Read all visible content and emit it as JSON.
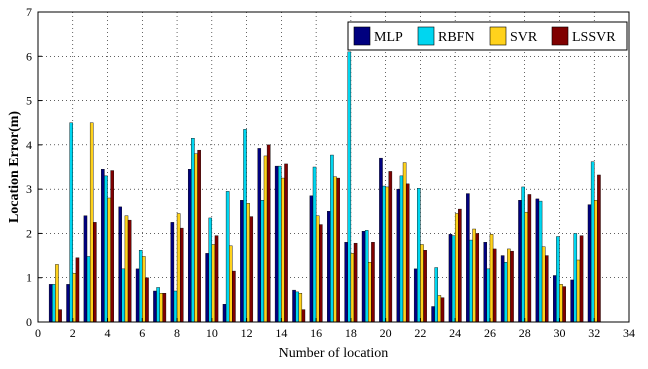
{
  "chart_data": {
    "type": "bar",
    "xlabel": "Number of location",
    "ylabel": "Location Error(m)",
    "xlim": [
      0,
      34
    ],
    "ylim": [
      0,
      7
    ],
    "xticks": [
      0,
      2,
      4,
      6,
      8,
      10,
      12,
      14,
      16,
      18,
      20,
      22,
      24,
      26,
      28,
      30,
      32,
      34
    ],
    "yticks": [
      0,
      1,
      2,
      3,
      4,
      5,
      6,
      7
    ],
    "grid": "on",
    "legend_position": "top-right",
    "categories": [
      1,
      2,
      3,
      4,
      5,
      6,
      7,
      8,
      9,
      10,
      11,
      12,
      13,
      14,
      15,
      16,
      17,
      18,
      19,
      20,
      21,
      22,
      23,
      24,
      25,
      26,
      27,
      28,
      29,
      30,
      31,
      32
    ],
    "series": [
      {
        "name": "MLP",
        "color": "#00007f",
        "values": [
          0.85,
          0.85,
          2.4,
          3.45,
          2.6,
          1.2,
          0.7,
          2.25,
          3.45,
          1.55,
          0.4,
          2.75,
          3.92,
          3.52,
          0.72,
          2.85,
          2.5,
          1.8,
          2.05,
          3.7,
          3.0,
          1.2,
          0.35,
          1.98,
          2.9,
          1.8,
          1.5,
          2.75,
          2.78,
          1.05,
          0.95,
          2.65
        ]
      },
      {
        "name": "RBFN",
        "color": "#00d6f0",
        "values": [
          0.85,
          4.5,
          1.48,
          3.3,
          1.2,
          1.62,
          0.78,
          0.7,
          4.15,
          2.35,
          2.95,
          4.35,
          2.75,
          3.52,
          0.68,
          3.5,
          3.77,
          6.1,
          2.07,
          3.07,
          3.3,
          3.02,
          1.23,
          1.95,
          1.85,
          1.2,
          1.35,
          3.05,
          2.73,
          1.93,
          2.0,
          3.62
        ]
      },
      {
        "name": "SVR",
        "color": "#ffd21c",
        "values": [
          1.3,
          1.1,
          4.5,
          2.8,
          2.4,
          1.48,
          0.65,
          2.45,
          3.8,
          1.75,
          1.72,
          2.68,
          3.75,
          3.25,
          0.65,
          2.4,
          3.28,
          1.55,
          1.35,
          3.05,
          3.6,
          1.75,
          0.6,
          2.45,
          2.1,
          1.98,
          1.65,
          2.48,
          1.7,
          0.85,
          1.4,
          2.75
        ]
      },
      {
        "name": "LSSVR",
        "color": "#7f0000",
        "values": [
          0.28,
          1.45,
          2.25,
          3.42,
          2.3,
          1.0,
          0.65,
          2.12,
          3.88,
          1.95,
          1.15,
          2.38,
          4.0,
          3.57,
          0.28,
          2.2,
          3.25,
          1.78,
          1.8,
          3.4,
          3.12,
          1.62,
          0.55,
          2.55,
          2.0,
          1.65,
          1.6,
          2.88,
          1.5,
          0.8,
          1.95,
          3.32
        ]
      }
    ]
  }
}
